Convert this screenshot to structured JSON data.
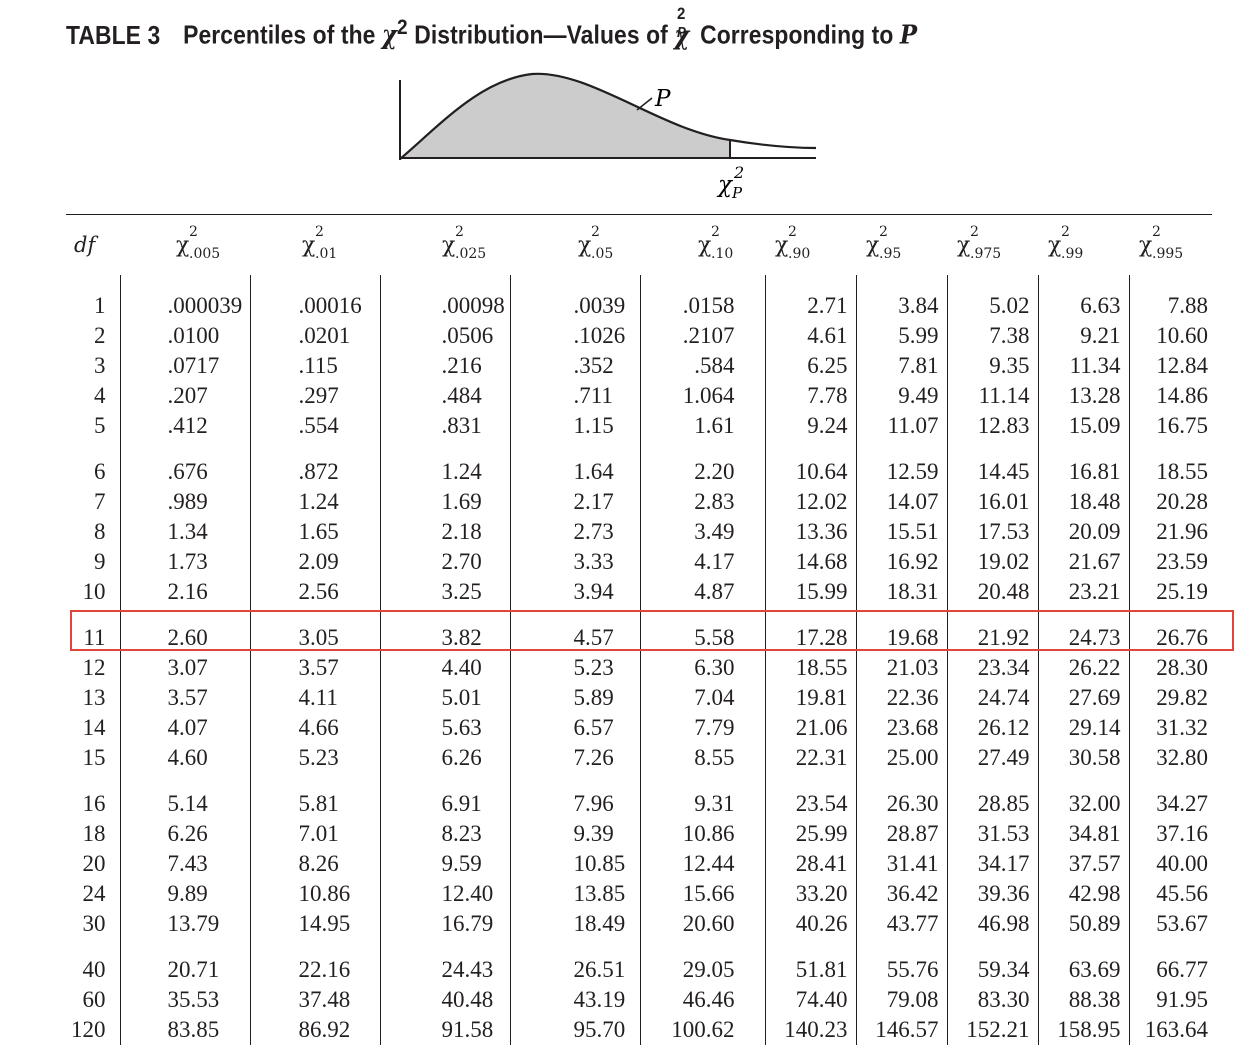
{
  "title": {
    "label": "TABLE 3",
    "pre": "Percentiles of the",
    "mid": "Distribution—Values of",
    "post": "Corresponding to",
    "chi_symbol": "χ",
    "sup_two": "2",
    "p_letter": "P"
  },
  "figure": {
    "p_label": "P",
    "axis_symbol": "χ",
    "axis_sup": "2",
    "axis_sub": "P",
    "shade_color": "#cccccc"
  },
  "table": {
    "df_header": "df",
    "chi_symbol": "χ",
    "sup_two": "2",
    "percentiles": [
      ".005",
      ".01",
      ".025",
      ".05",
      ".10",
      ".90",
      ".95",
      ".975",
      ".99",
      ".995"
    ],
    "rows": [
      {
        "df": "1",
        "values": [
          ".000039",
          ".00016",
          ".00098",
          ".0039",
          ".0158",
          "2.71",
          "3.84",
          "5.02",
          "6.63",
          "7.88"
        ]
      },
      {
        "df": "2",
        "values": [
          ".0100",
          ".0201",
          ".0506",
          ".1026",
          ".2107",
          "4.61",
          "5.99",
          "7.38",
          "9.21",
          "10.60"
        ]
      },
      {
        "df": "3",
        "values": [
          ".0717",
          ".115",
          ".216",
          ".352",
          ".584",
          "6.25",
          "7.81",
          "9.35",
          "11.34",
          "12.84"
        ]
      },
      {
        "df": "4",
        "values": [
          ".207",
          ".297",
          ".484",
          ".711",
          "1.064",
          "7.78",
          "9.49",
          "11.14",
          "13.28",
          "14.86"
        ]
      },
      {
        "df": "5",
        "values": [
          ".412",
          ".554",
          ".831",
          "1.15",
          "1.61",
          "9.24",
          "11.07",
          "12.83",
          "15.09",
          "16.75"
        ]
      },
      {
        "df": "6",
        "values": [
          ".676",
          ".872",
          "1.24",
          "1.64",
          "2.20",
          "10.64",
          "12.59",
          "14.45",
          "16.81",
          "18.55"
        ]
      },
      {
        "df": "7",
        "values": [
          ".989",
          "1.24",
          "1.69",
          "2.17",
          "2.83",
          "12.02",
          "14.07",
          "16.01",
          "18.48",
          "20.28"
        ]
      },
      {
        "df": "8",
        "values": [
          "1.34",
          "1.65",
          "2.18",
          "2.73",
          "3.49",
          "13.36",
          "15.51",
          "17.53",
          "20.09",
          "21.96"
        ]
      },
      {
        "df": "9",
        "values": [
          "1.73",
          "2.09",
          "2.70",
          "3.33",
          "4.17",
          "14.68",
          "16.92",
          "19.02",
          "21.67",
          "23.59"
        ]
      },
      {
        "df": "10",
        "values": [
          "2.16",
          "2.56",
          "3.25",
          "3.94",
          "4.87",
          "15.99",
          "18.31",
          "20.48",
          "23.21",
          "25.19"
        ]
      },
      {
        "df": "11",
        "values": [
          "2.60",
          "3.05",
          "3.82",
          "4.57",
          "5.58",
          "17.28",
          "19.68",
          "21.92",
          "24.73",
          "26.76"
        ]
      },
      {
        "df": "12",
        "values": [
          "3.07",
          "3.57",
          "4.40",
          "5.23",
          "6.30",
          "18.55",
          "21.03",
          "23.34",
          "26.22",
          "28.30"
        ]
      },
      {
        "df": "13",
        "values": [
          "3.57",
          "4.11",
          "5.01",
          "5.89",
          "7.04",
          "19.81",
          "22.36",
          "24.74",
          "27.69",
          "29.82"
        ]
      },
      {
        "df": "14",
        "values": [
          "4.07",
          "4.66",
          "5.63",
          "6.57",
          "7.79",
          "21.06",
          "23.68",
          "26.12",
          "29.14",
          "31.32"
        ]
      },
      {
        "df": "15",
        "values": [
          "4.60",
          "5.23",
          "6.26",
          "7.26",
          "8.55",
          "22.31",
          "25.00",
          "27.49",
          "30.58",
          "32.80"
        ]
      },
      {
        "df": "16",
        "values": [
          "5.14",
          "5.81",
          "6.91",
          "7.96",
          "9.31",
          "23.54",
          "26.30",
          "28.85",
          "32.00",
          "34.27"
        ]
      },
      {
        "df": "18",
        "values": [
          "6.26",
          "7.01",
          "8.23",
          "9.39",
          "10.86",
          "25.99",
          "28.87",
          "31.53",
          "34.81",
          "37.16"
        ]
      },
      {
        "df": "20",
        "values": [
          "7.43",
          "8.26",
          "9.59",
          "10.85",
          "12.44",
          "28.41",
          "31.41",
          "34.17",
          "37.57",
          "40.00"
        ]
      },
      {
        "df": "24",
        "values": [
          "9.89",
          "10.86",
          "12.40",
          "13.85",
          "15.66",
          "33.20",
          "36.42",
          "39.36",
          "42.98",
          "45.56"
        ]
      },
      {
        "df": "30",
        "values": [
          "13.79",
          "14.95",
          "16.79",
          "18.49",
          "20.60",
          "40.26",
          "43.77",
          "46.98",
          "50.89",
          "53.67"
        ]
      },
      {
        "df": "40",
        "values": [
          "20.71",
          "22.16",
          "24.43",
          "26.51",
          "29.05",
          "51.81",
          "55.76",
          "59.34",
          "63.69",
          "66.77"
        ]
      },
      {
        "df": "60",
        "values": [
          "35.53",
          "37.48",
          "40.48",
          "43.19",
          "46.46",
          "74.40",
          "79.08",
          "83.30",
          "88.38",
          "91.95"
        ]
      },
      {
        "df": "120",
        "values": [
          "83.85",
          "86.92",
          "91.58",
          "95.70",
          "100.62",
          "140.23",
          "146.57",
          "152.21",
          "158.95",
          "163.64"
        ]
      }
    ],
    "highlight_df": "11",
    "highlight_color": "#e0443a"
  }
}
